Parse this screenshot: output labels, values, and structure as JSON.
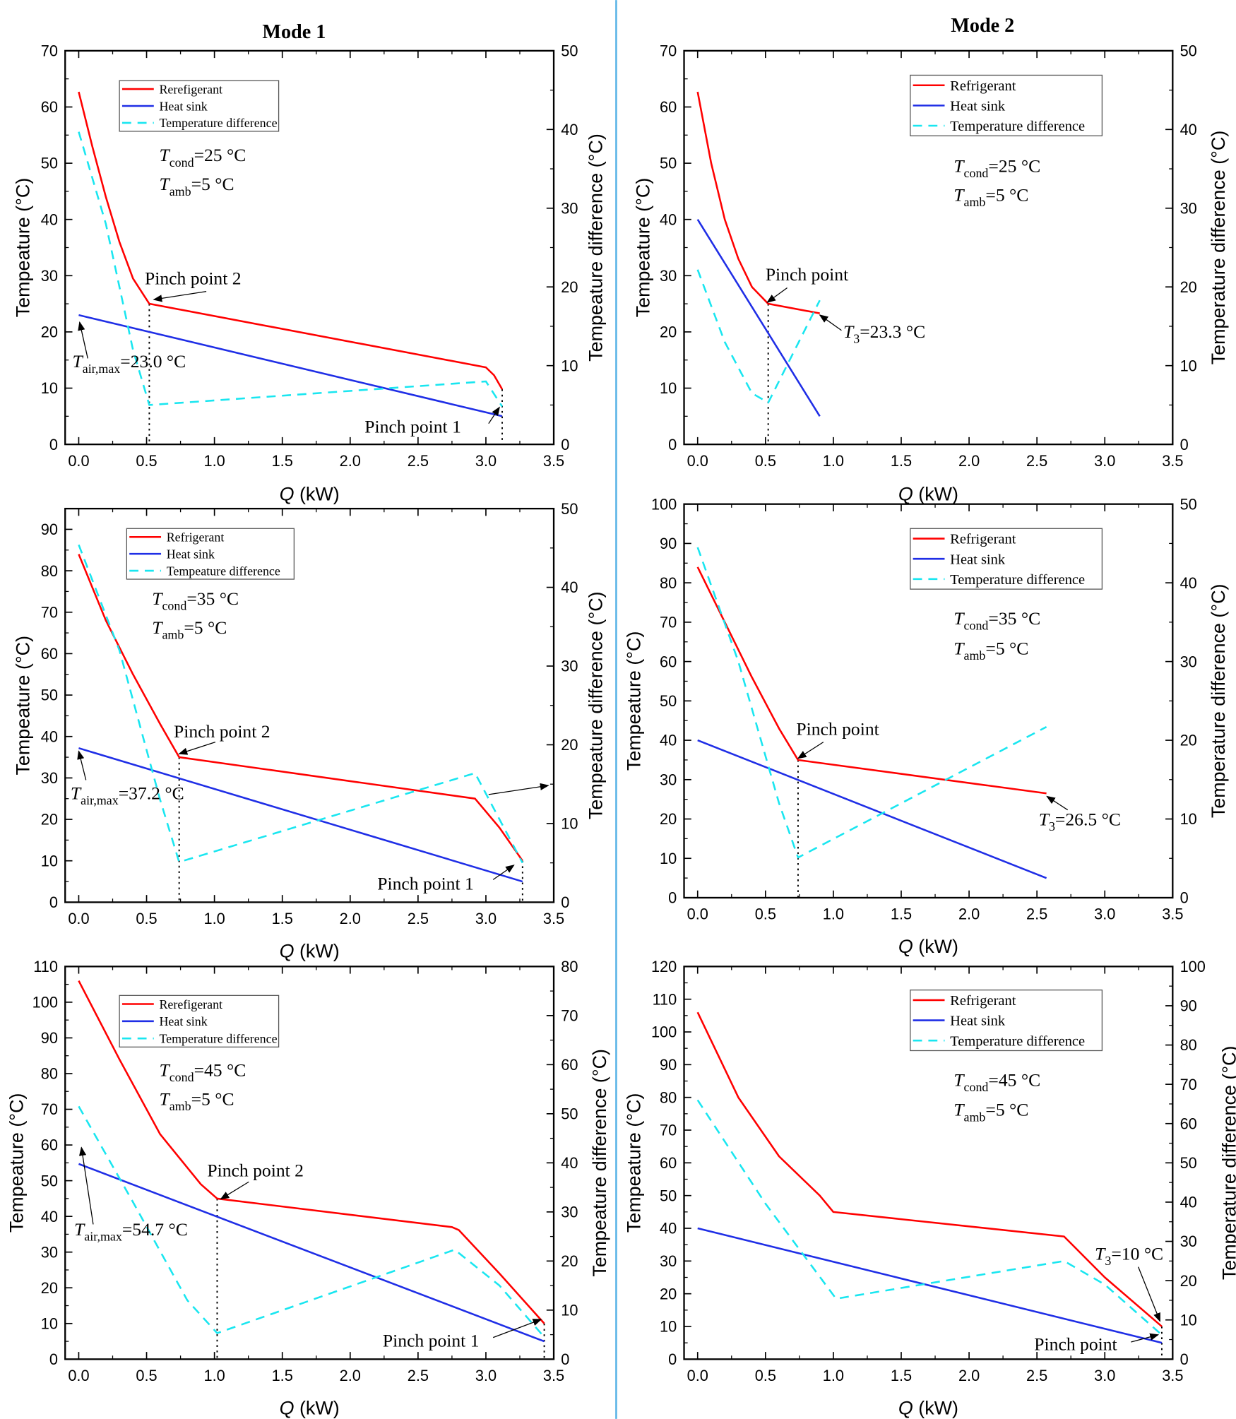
{
  "titles": [
    "Mode 1",
    "Mode 2"
  ],
  "colors": {
    "refrigerant": "#ff0000",
    "heat_sink": "#1f2ee6",
    "temp_diff": "#19e6f0",
    "divider": "#5ab4e6"
  },
  "chart_data": [
    {
      "type": "line",
      "mode": "Mode 1",
      "xlabel_var": "Q",
      "xlabel_unit": " (kW)",
      "ylabel": "Tempeature (°C)",
      "y2label": "Tempeature difference (°C)",
      "xlim": [
        -0.1,
        3.5
      ],
      "ylim": [
        0,
        70
      ],
      "y2lim": [
        0,
        50
      ],
      "xticks": [
        "0.0",
        "0.5",
        "1.0",
        "1.5",
        "2.0",
        "2.5",
        "3.0",
        "3.5"
      ],
      "yticks": [
        0,
        10,
        20,
        30,
        40,
        50,
        60,
        70
      ],
      "y2ticks": [
        0,
        10,
        20,
        30,
        40,
        50
      ],
      "series": [
        {
          "name": "Rerefigerant",
          "key": "refrigerant",
          "axis": "left",
          "x": [
            0,
            0.1,
            0.2,
            0.3,
            0.4,
            0.52,
            3.0,
            3.06,
            3.12
          ],
          "y": [
            62.7,
            53,
            44,
            36,
            29.5,
            25,
            13.7,
            12.3,
            9.8
          ]
        },
        {
          "name": "Heat sink",
          "key": "heat_sink",
          "axis": "left",
          "x": [
            0,
            3.12
          ],
          "y": [
            23,
            5
          ]
        },
        {
          "name": "Temperature difference",
          "key": "temp_diff",
          "axis": "right",
          "x": [
            0,
            0.2,
            0.4,
            0.52,
            3.0,
            3.12
          ],
          "y": [
            39.7,
            28,
            12,
            5,
            8,
            4.8
          ]
        }
      ],
      "pinch_x": [
        0.52,
        3.12
      ],
      "annotations": [
        {
          "main": "T",
          "sub": "cond",
          "rest": "=25 °C"
        },
        {
          "main": "T",
          "sub": "amb",
          "rest": "=5 °C"
        },
        {
          "main": "Pinch point 2"
        },
        {
          "main": "Pinch point 1"
        },
        {
          "main": "T",
          "sub": "air,max",
          "rest": "=23.0 °C"
        }
      ]
    },
    {
      "type": "line",
      "mode": "Mode 2",
      "xlabel_var": "Q",
      "xlabel_unit": " (kW)",
      "ylabel": "Tempeature (°C)",
      "y2label": "Temperature difference (°C)",
      "xlim": [
        -0.1,
        3.5
      ],
      "ylim": [
        0,
        70
      ],
      "y2lim": [
        0,
        50
      ],
      "xticks": [
        "0.0",
        "0.5",
        "1.0",
        "1.5",
        "2.0",
        "2.5",
        "3.0",
        "3.5"
      ],
      "yticks": [
        0,
        10,
        20,
        30,
        40,
        50,
        60,
        70
      ],
      "y2ticks": [
        0,
        10,
        20,
        30,
        40,
        50
      ],
      "series": [
        {
          "name": "Refrigerant",
          "key": "refrigerant",
          "axis": "left",
          "x": [
            0,
            0.1,
            0.2,
            0.3,
            0.4,
            0.52,
            0.9
          ],
          "y": [
            62.7,
            50,
            40,
            33,
            28,
            25,
            23.3
          ]
        },
        {
          "name": "Heat sink",
          "key": "heat_sink",
          "axis": "left",
          "x": [
            0,
            0.9
          ],
          "y": [
            40,
            5
          ]
        },
        {
          "name": "Temperature difference",
          "key": "temp_diff",
          "axis": "right",
          "x": [
            0,
            0.2,
            0.4,
            0.52,
            0.9
          ],
          "y": [
            22.2,
            13,
            6.5,
            5.3,
            18.3
          ]
        }
      ],
      "pinch_x": [
        0.52
      ],
      "annotations": [
        {
          "main": "T",
          "sub": "cond",
          "rest": "=25 °C"
        },
        {
          "main": "T",
          "sub": "amb",
          "rest": "=5 °C"
        },
        {
          "main": "Pinch point"
        },
        {
          "main": "T",
          "sub": "3",
          "rest": "=23.3 °C"
        }
      ]
    },
    {
      "type": "line",
      "mode": "Mode 1",
      "xlabel_var": "Q",
      "xlabel_unit": " (kW)",
      "ylabel": "Tempeature (°C)",
      "y2label": "Tempeature difference (°C)",
      "xlim": [
        -0.1,
        3.5
      ],
      "ylim": [
        0,
        95
      ],
      "y2lim": [
        0,
        50
      ],
      "xticks": [
        "0.0",
        "0.5",
        "1.0",
        "1.5",
        "2.0",
        "2.5",
        "3.0",
        "3.5"
      ],
      "yticks": [
        0,
        10,
        20,
        30,
        40,
        50,
        60,
        70,
        80,
        90
      ],
      "y2ticks": [
        0,
        10,
        20,
        30,
        40,
        50
      ],
      "series": [
        {
          "name": "Refrigerant",
          "key": "refrigerant",
          "axis": "left",
          "x": [
            0,
            0.2,
            0.4,
            0.6,
            0.74,
            2.92,
            3.1,
            3.27
          ],
          "y": [
            84,
            68,
            55,
            43,
            35,
            25,
            18,
            10
          ]
        },
        {
          "name": "Heat sink",
          "key": "heat_sink",
          "axis": "left",
          "x": [
            0,
            3.27
          ],
          "y": [
            37.2,
            5
          ]
        },
        {
          "name": "Tempeature difference",
          "key": "temp_diff",
          "axis": "right",
          "x": [
            0,
            0.3,
            0.6,
            0.74,
            2.92,
            3.27
          ],
          "y": [
            45.4,
            32,
            13,
            5.1,
            16.4,
            5
          ]
        }
      ],
      "pinch_x": [
        0.74,
        3.27
      ],
      "annotations": [
        {
          "main": "T",
          "sub": "cond",
          "rest": "=35 °C"
        },
        {
          "main": "T",
          "sub": "amb",
          "rest": "=5 °C"
        },
        {
          "main": "Pinch point 2"
        },
        {
          "main": "Pinch point 1"
        },
        {
          "main": "T",
          "sub": "air,max",
          "rest": "=37.2 °C"
        }
      ]
    },
    {
      "type": "line",
      "mode": "Mode 2",
      "xlabel_var": "Q",
      "xlabel_unit": " (kW)",
      "ylabel": "Tempeature (°C)",
      "y2label": "Temperature difference (°C)",
      "xlim": [
        -0.1,
        3.5
      ],
      "ylim": [
        0,
        100
      ],
      "y2lim": [
        0,
        50
      ],
      "xticks": [
        "0.0",
        "0.5",
        "1.0",
        "1.5",
        "2.0",
        "2.5",
        "3.0",
        "3.5"
      ],
      "yticks": [
        0,
        10,
        20,
        30,
        40,
        50,
        60,
        70,
        80,
        90,
        100
      ],
      "y2ticks": [
        0,
        10,
        20,
        30,
        40,
        50
      ],
      "series": [
        {
          "name": "Refrigerant",
          "key": "refrigerant",
          "axis": "left",
          "x": [
            0,
            0.2,
            0.4,
            0.6,
            0.74,
            2.57
          ],
          "y": [
            84,
            70,
            56,
            43,
            35,
            26.5
          ]
        },
        {
          "name": "Heat sink",
          "key": "heat_sink",
          "axis": "left",
          "x": [
            0,
            2.57
          ],
          "y": [
            40,
            5
          ]
        },
        {
          "name": "Temperature difference",
          "key": "temp_diff",
          "axis": "right",
          "x": [
            0,
            0.3,
            0.6,
            0.74,
            2.57
          ],
          "y": [
            44.5,
            30,
            12,
            5.1,
            21.7
          ]
        }
      ],
      "pinch_x": [
        0.74
      ],
      "annotations": [
        {
          "main": "T",
          "sub": "cond",
          "rest": "=35 °C"
        },
        {
          "main": "T",
          "sub": "amb",
          "rest": "=5 °C"
        },
        {
          "main": "Pinch point"
        },
        {
          "main": "T",
          "sub": "3",
          "rest": "=26.5 °C"
        }
      ]
    },
    {
      "type": "line",
      "mode": "Mode 1",
      "xlabel_var": "Q",
      "xlabel_unit": " (kW)",
      "ylabel": "Tempeature (°C)",
      "y2label": "Tempeature difference (°C)",
      "xlim": [
        -0.1,
        3.5
      ],
      "ylim": [
        0,
        110
      ],
      "y2lim": [
        0,
        80
      ],
      "xticks": [
        "0.0",
        "0.5",
        "1.0",
        "1.5",
        "2.0",
        "2.5",
        "3.0",
        "3.5"
      ],
      "yticks": [
        0,
        10,
        20,
        30,
        40,
        50,
        60,
        70,
        80,
        90,
        100,
        110
      ],
      "y2ticks": [
        0,
        10,
        20,
        30,
        40,
        50,
        60,
        70,
        80
      ],
      "series": [
        {
          "name": "Rerefigerant",
          "key": "refrigerant",
          "axis": "left",
          "x": [
            0,
            0.3,
            0.6,
            0.9,
            1.02,
            2.75,
            2.8,
            3.1,
            3.43
          ],
          "y": [
            106,
            84,
            63,
            49,
            45,
            37,
            36.2,
            24,
            10
          ]
        },
        {
          "name": "Heat sink",
          "key": "heat_sink",
          "axis": "left",
          "x": [
            0,
            3.43
          ],
          "y": [
            54.7,
            5
          ]
        },
        {
          "name": "Temperature difference",
          "key": "temp_diff",
          "axis": "right",
          "x": [
            0,
            0.4,
            0.8,
            1.02,
            2.77,
            3.1,
            3.43
          ],
          "y": [
            51.5,
            32,
            12,
            5.3,
            22.3,
            15,
            4.5
          ]
        }
      ],
      "pinch_x": [
        1.02,
        3.43
      ],
      "annotations": [
        {
          "main": "T",
          "sub": "cond",
          "rest": "=45 °C"
        },
        {
          "main": "T",
          "sub": "amb",
          "rest": "=5 °C"
        },
        {
          "main": "Pinch point 2"
        },
        {
          "main": "Pinch point 1"
        },
        {
          "main": "T",
          "sub": "air,max",
          "rest": "=54.7 °C"
        }
      ]
    },
    {
      "type": "line",
      "mode": "Mode 2",
      "xlabel_var": "Q",
      "xlabel_unit": " (kW)",
      "ylabel": "Tempeature (°C)",
      "y2label": "Temperature difference (°C)",
      "xlim": [
        -0.1,
        3.5
      ],
      "ylim": [
        0,
        120
      ],
      "y2lim": [
        0,
        100
      ],
      "xticks": [
        "0.0",
        "0.5",
        "1.0",
        "1.5",
        "2.0",
        "2.5",
        "3.0",
        "3.5"
      ],
      "yticks": [
        0,
        10,
        20,
        30,
        40,
        50,
        60,
        70,
        80,
        90,
        100,
        110,
        120
      ],
      "y2ticks": [
        0,
        10,
        20,
        30,
        40,
        50,
        60,
        70,
        80,
        90,
        100
      ],
      "series": [
        {
          "name": "Refrigerant",
          "key": "refrigerant",
          "axis": "left",
          "x": [
            0,
            0.3,
            0.6,
            0.9,
            1.0,
            2.7,
            3.0,
            3.42
          ],
          "y": [
            106,
            80,
            62,
            50,
            45,
            37.5,
            25,
            10
          ]
        },
        {
          "name": "Heat sink",
          "key": "heat_sink",
          "axis": "left",
          "x": [
            0,
            3.42
          ],
          "y": [
            40,
            5
          ]
        },
        {
          "name": "Temperature difference",
          "key": "temp_diff",
          "axis": "right",
          "x": [
            0,
            0.5,
            1.02,
            2.7,
            3.0,
            3.42
          ],
          "y": [
            66,
            39.6,
            15.4,
            25,
            19,
            6.2
          ]
        }
      ],
      "pinch_x": [
        3.42
      ],
      "annotations": [
        {
          "main": "T",
          "sub": "cond",
          "rest": "=45 °C"
        },
        {
          "main": "T",
          "sub": "amb",
          "rest": "=5 °C"
        },
        {
          "main": "Pinch point"
        },
        {
          "main": "T",
          "sub": "3",
          "rest": "=10 °C"
        }
      ]
    }
  ]
}
